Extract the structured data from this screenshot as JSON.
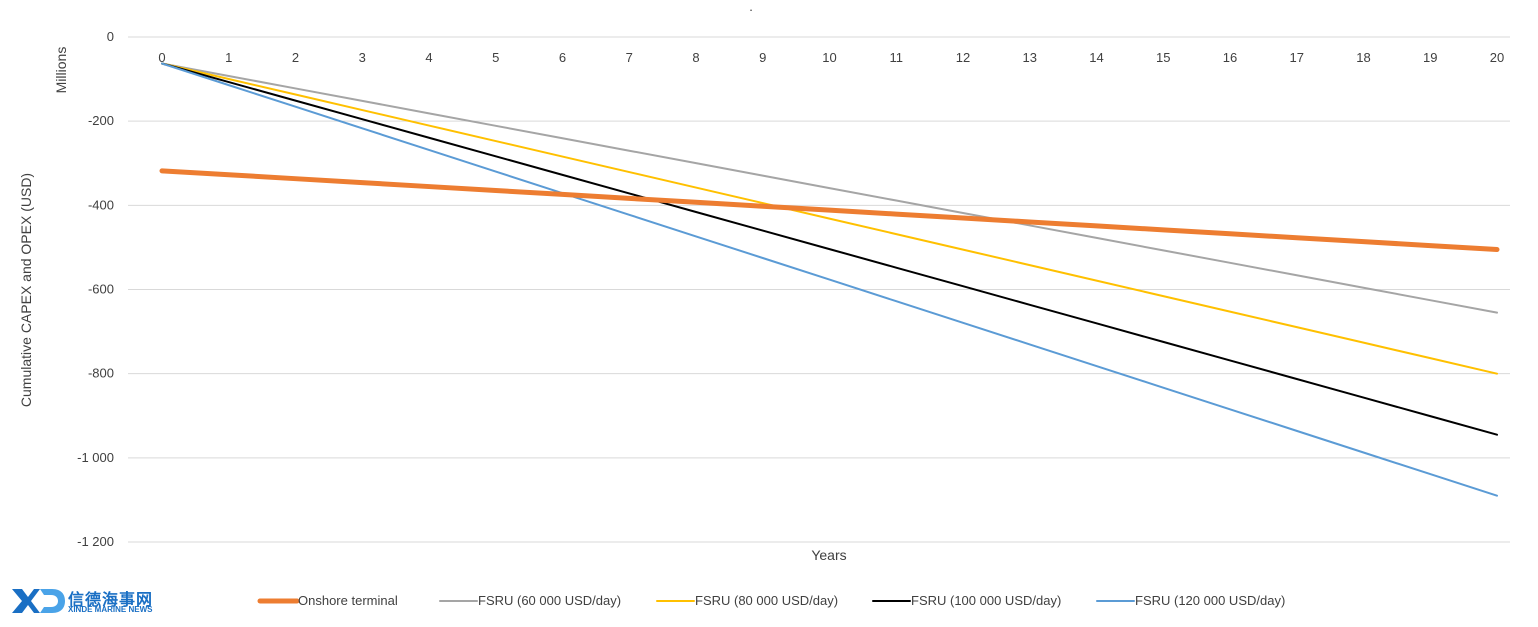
{
  "chart_data": {
    "type": "line",
    "title_mark": "·",
    "unit_label": "Millions",
    "xlabel": "Years",
    "ylabel": "Cumulative CAPEX and OPEX (USD)",
    "x": [
      0,
      1,
      2,
      3,
      4,
      5,
      6,
      7,
      8,
      9,
      10,
      11,
      12,
      13,
      14,
      15,
      16,
      17,
      18,
      19,
      20
    ],
    "ylim": [
      -1200,
      0
    ],
    "yticks": [
      0,
      -200,
      -400,
      -600,
      -800,
      -1000,
      -1200
    ],
    "ytick_labels": [
      "0",
      "-200",
      "-400",
      "-600",
      "-800",
      "-1 000",
      "-1 200"
    ],
    "grid": true,
    "legend_position": "bottom",
    "series": [
      {
        "name": "Onshore terminal",
        "color": "#ed7d31",
        "start": -318,
        "end": -505,
        "width": 5
      },
      {
        "name": "FSRU (60 000 USD/day)",
        "color": "#a5a5a5",
        "start": -63,
        "end": -655,
        "width": 2
      },
      {
        "name": "FSRU (80 000 USD/day)",
        "color": "#ffc000",
        "start": -63,
        "end": -800,
        "width": 2
      },
      {
        "name": "FSRU (100 000 USD/day)",
        "color": "#000000",
        "start": -63,
        "end": -945,
        "width": 2
      },
      {
        "name": "FSRU (120 000 USD/day)",
        "color": "#5b9bd5",
        "start": -63,
        "end": -1090,
        "width": 2
      }
    ]
  },
  "logo": {
    "chinese": "信德海事网",
    "english": "XINDE MARINE NEWS",
    "mark": "XD"
  }
}
